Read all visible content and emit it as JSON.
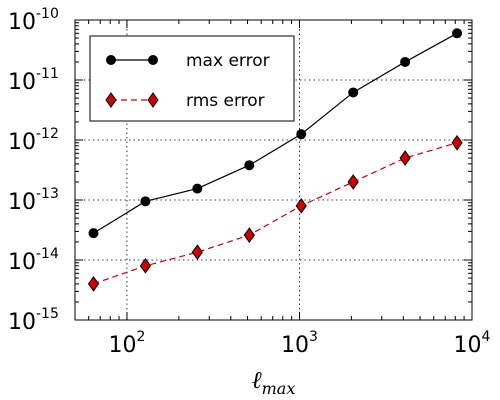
{
  "chart_data": {
    "type": "line",
    "xscale": "log",
    "yscale": "log",
    "xlim": [
      50,
      10000
    ],
    "ylim": [
      1e-15,
      1e-10
    ],
    "xlabel": {
      "base": "ℓ",
      "sub": "max"
    },
    "x_ticks": [
      {
        "value": 100,
        "base": "10",
        "exp": "2"
      },
      {
        "value": 1000,
        "base": "10",
        "exp": "3"
      },
      {
        "value": 10000,
        "base": "10",
        "exp": "4"
      }
    ],
    "y_ticks": [
      {
        "value": 1e-15,
        "base": "10",
        "exp": "-15"
      },
      {
        "value": 1e-14,
        "base": "10",
        "exp": "-14"
      },
      {
        "value": 1e-13,
        "base": "10",
        "exp": "-13"
      },
      {
        "value": 1e-12,
        "base": "10",
        "exp": "-12"
      },
      {
        "value": 1e-11,
        "base": "10",
        "exp": "-11"
      },
      {
        "value": 1e-10,
        "base": "10",
        "exp": "-10"
      }
    ],
    "grid": true,
    "legend_position": "top-left",
    "x": [
      64,
      128,
      256,
      512,
      1024,
      2048,
      4096,
      8192
    ],
    "series": [
      {
        "name": "max error",
        "values": [
          2.8e-14,
          9.5e-14,
          1.55e-13,
          3.8e-13,
          1.25e-12,
          6.2e-12,
          2e-11,
          6e-11
        ],
        "color": "#000000",
        "marker": "circle",
        "linestyle": "solid"
      },
      {
        "name": "rms error",
        "values": [
          4e-15,
          8e-15,
          1.35e-14,
          2.6e-14,
          8e-14,
          2e-13,
          5e-13,
          9e-13
        ],
        "color": "#cc0000",
        "marker": "diamond",
        "linestyle": "dashed"
      }
    ]
  }
}
